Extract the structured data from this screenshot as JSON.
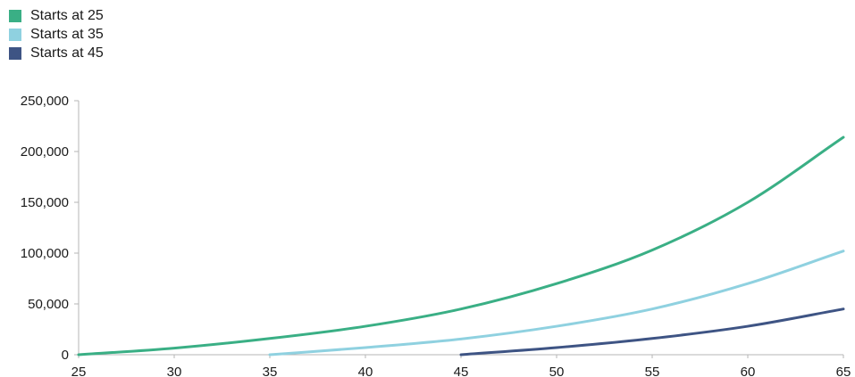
{
  "chart_data": {
    "type": "line",
    "title": "",
    "xlabel": "",
    "ylabel": "",
    "xlim": [
      25,
      65
    ],
    "ylim": [
      0,
      250000
    ],
    "x_ticks": [
      "25",
      "30",
      "35",
      "40",
      "45",
      "50",
      "55",
      "60",
      "65"
    ],
    "x_tick_values": [
      25,
      30,
      35,
      40,
      45,
      50,
      55,
      60,
      65
    ],
    "y_ticks": [
      "0",
      "50,000",
      "100,000",
      "150,000",
      "200,000",
      "250,000"
    ],
    "y_tick_values": [
      0,
      50000,
      100000,
      150000,
      200000,
      250000
    ],
    "grid": false,
    "legend_position": "top-left",
    "series": [
      {
        "name": "Starts at 25",
        "color": "#3aaf85",
        "x": [
          25,
          30,
          35,
          40,
          45,
          50,
          55,
          60,
          65
        ],
        "y": [
          0,
          6500,
          16000,
          28000,
          45000,
          70000,
          103000,
          150000,
          214000
        ]
      },
      {
        "name": "Starts at 35",
        "color": "#8fd1e0",
        "x": [
          35,
          40,
          45,
          50,
          55,
          60,
          65
        ],
        "y": [
          0,
          7000,
          15500,
          28000,
          45000,
          70000,
          102000
        ]
      },
      {
        "name": "Starts at 45",
        "color": "#3e5484",
        "x": [
          45,
          50,
          55,
          60,
          65
        ],
        "y": [
          0,
          7000,
          16000,
          28000,
          45000
        ]
      }
    ]
  }
}
